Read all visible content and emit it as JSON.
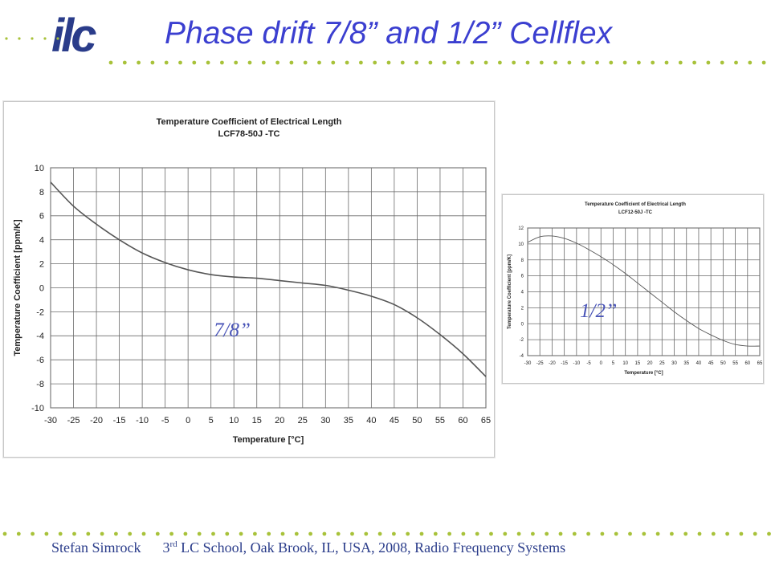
{
  "slide": {
    "logo_text": "ilc",
    "title": "Phase drift 7/8” and 1/2” Cellflex",
    "footer": {
      "author": "Stefan Simrock",
      "event_pre": "3",
      "event_sup": "rd",
      "event_post": " LC  School, Oak Brook, IL, USA, 2008,",
      "topic": "Radio Frequency Systems"
    },
    "accent_color": "#2a3c8a",
    "dot_color": "#a8c23a"
  },
  "callouts": {
    "large_chart_label": "7/8”",
    "small_chart_label": "1/2’’"
  },
  "chart_data": [
    {
      "type": "line",
      "title": "Temperature Coefficient of Electrical Length",
      "subtitle": "LCF78-50J -TC",
      "xlabel": "Temperature [°C]",
      "ylabel": "Temperature Coefficient [ppm/K]",
      "xlim": [
        -30,
        65
      ],
      "ylim": [
        -10,
        10
      ],
      "xticks": [
        -30,
        -25,
        -20,
        -15,
        -10,
        -5,
        0,
        5,
        10,
        15,
        20,
        25,
        30,
        35,
        40,
        45,
        50,
        55,
        60,
        65
      ],
      "yticks": [
        -10,
        -8,
        -6,
        -4,
        -2,
        0,
        2,
        4,
        6,
        8,
        10
      ],
      "grid": true,
      "x": [
        -30,
        -25,
        -20,
        -15,
        -10,
        -5,
        0,
        5,
        10,
        15,
        20,
        25,
        30,
        35,
        40,
        45,
        50,
        55,
        60,
        65
      ],
      "y": [
        8.8,
        6.8,
        5.3,
        4.0,
        2.9,
        2.1,
        1.5,
        1.1,
        0.9,
        0.8,
        0.6,
        0.4,
        0.2,
        -0.2,
        -0.7,
        -1.4,
        -2.5,
        -3.9,
        -5.5,
        -7.4
      ],
      "line_color": "#555555"
    },
    {
      "type": "line",
      "title": "Temperature Coefficient of Electrical Length",
      "subtitle": "LCF12-50J -TC",
      "xlabel": "Temperature [°C]",
      "ylabel": "Temperature Coefficient [ppm/K]",
      "xlim": [
        -30,
        65
      ],
      "ylim": [
        -4,
        12
      ],
      "xticks": [
        -30,
        -25,
        -20,
        -15,
        -10,
        -5,
        0,
        5,
        10,
        15,
        20,
        25,
        30,
        35,
        40,
        45,
        50,
        55,
        60,
        65
      ],
      "yticks": [
        -4,
        -2,
        0,
        2,
        4,
        6,
        8,
        10,
        12
      ],
      "grid": true,
      "x": [
        -30,
        -25,
        -20,
        -15,
        -10,
        -5,
        0,
        5,
        10,
        15,
        20,
        25,
        30,
        35,
        40,
        45,
        50,
        55,
        60,
        65
      ],
      "y": [
        10.2,
        10.9,
        11.0,
        10.7,
        10.1,
        9.3,
        8.4,
        7.4,
        6.3,
        5.1,
        3.9,
        2.7,
        1.5,
        0.4,
        -0.6,
        -1.4,
        -2.1,
        -2.6,
        -2.8,
        -2.8
      ],
      "line_color": "#555555"
    }
  ]
}
